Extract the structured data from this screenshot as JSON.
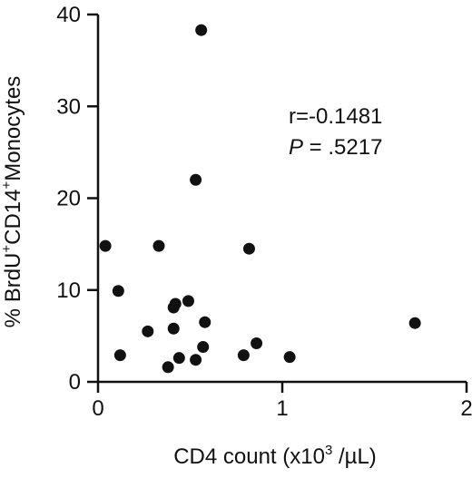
{
  "chart_data": {
    "type": "scatter",
    "xlabel_main": "CD4 count (x10",
    "xlabel_sup": "3",
    "xlabel_tail": " /µL)",
    "ylabel_parts": [
      "% BrdU",
      "+",
      "CD14",
      "+",
      "Monocytes"
    ],
    "xlim": [
      0,
      2
    ],
    "ylim": [
      0,
      40
    ],
    "xticks": [
      0,
      1,
      2
    ],
    "yticks": [
      0,
      10,
      20,
      30,
      40
    ],
    "annotation": {
      "r_text": "r=-0.1481",
      "p_label": "P",
      "p_value": " = .5217"
    },
    "points": [
      {
        "x": 0.04,
        "y": 14.8
      },
      {
        "x": 0.11,
        "y": 9.9
      },
      {
        "x": 0.12,
        "y": 2.9
      },
      {
        "x": 0.27,
        "y": 5.5
      },
      {
        "x": 0.33,
        "y": 14.8
      },
      {
        "x": 0.38,
        "y": 1.6
      },
      {
        "x": 0.41,
        "y": 5.8
      },
      {
        "x": 0.41,
        "y": 8.1
      },
      {
        "x": 0.42,
        "y": 8.5
      },
      {
        "x": 0.44,
        "y": 2.6
      },
      {
        "x": 0.49,
        "y": 8.8
      },
      {
        "x": 0.53,
        "y": 2.4
      },
      {
        "x": 0.53,
        "y": 22.0
      },
      {
        "x": 0.56,
        "y": 38.3
      },
      {
        "x": 0.57,
        "y": 3.8
      },
      {
        "x": 0.58,
        "y": 6.5
      },
      {
        "x": 0.79,
        "y": 2.9
      },
      {
        "x": 0.82,
        "y": 14.5
      },
      {
        "x": 0.86,
        "y": 4.2
      },
      {
        "x": 1.04,
        "y": 2.7
      },
      {
        "x": 1.72,
        "y": 6.4
      }
    ]
  }
}
